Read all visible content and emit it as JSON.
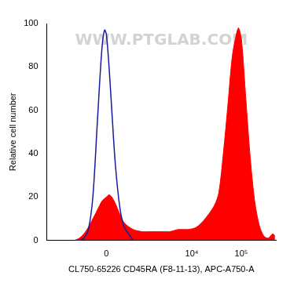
{
  "chart_data": {
    "type": "area",
    "x_label": "CL750-65226 CD45RA (F8-11-13), APC-A750-A",
    "y_label": "Relative cell number",
    "annotations": [
      "WWW.PTGLAB.COM"
    ],
    "xlim": [
      -3000,
      500000
    ],
    "xticks": [
      0,
      {
        "value": 10000,
        "label": "10⁴"
      },
      {
        "value": 100000,
        "label": "10⁵"
      }
    ],
    "ylim": [
      0,
      100
    ],
    "yticks": [
      0,
      20,
      40,
      60,
      80,
      100
    ],
    "grid": false,
    "series": [
      {
        "color": "#1a1aa0",
        "type": "line",
        "x": [
          -770,
          -607,
          -471,
          -354,
          -253,
          -162,
          -80,
          -32,
          0,
          47,
          96,
          162,
          253,
          354,
          607
        ],
        "values": [
          0,
          0,
          1,
          5,
          20,
          55,
          88,
          97,
          95,
          80,
          60,
          35,
          15,
          6,
          0
        ]
      },
      {
        "color": "#ff0000",
        "type": "area",
        "x": [
          -770,
          -607,
          -471,
          -354,
          -253,
          -162,
          -80,
          0,
          47,
          96,
          162,
          253,
          354,
          607,
          969,
          1500,
          2300,
          3520,
          5360,
          8180,
          12300,
          18700,
          28500,
          35200,
          43400,
          53500,
          66000,
          81400,
          88200,
          100600,
          124000,
          152000,
          187000,
          231000,
          285000,
          351000,
          433000,
          480000
        ],
        "values": [
          0,
          1,
          3,
          6,
          10,
          14,
          18,
          20,
          21,
          20,
          17,
          12,
          8,
          5,
          4,
          4,
          4,
          4,
          5,
          5,
          6,
          10,
          16,
          22,
          40,
          62,
          85,
          96,
          98,
          93,
          65,
          38,
          18,
          7,
          2,
          1,
          3,
          2
        ]
      }
    ]
  }
}
